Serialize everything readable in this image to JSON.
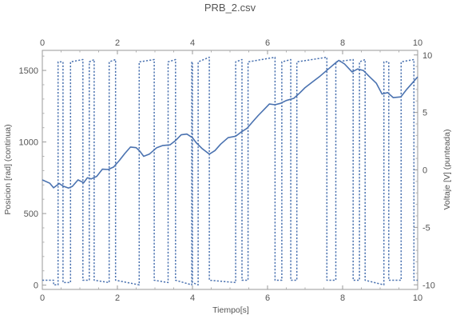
{
  "chart_data": {
    "type": "line",
    "title": "PRB_2.csv",
    "xlabel": "Tiempo[s]",
    "ylabel_left": "Posicion [rad] (continua)",
    "ylabel_right": "Voltaje [V] (punteada)",
    "xlim": [
      0,
      10
    ],
    "ylim_left": [
      -30,
      1640
    ],
    "ylim_right": [
      -10.4,
      10.4
    ],
    "x_ticks": [
      "0",
      "2",
      "4",
      "6",
      "8",
      "10"
    ],
    "x_tick_values": [
      0,
      2,
      4,
      6,
      8,
      10
    ],
    "y_left_ticks": [
      "0",
      "500",
      "1000",
      "1500"
    ],
    "y_left_tick_values": [
      0,
      500,
      1000,
      1500
    ],
    "y_right_ticks": [
      "-10",
      "-5",
      "0",
      "5",
      "10"
    ],
    "y_right_tick_values": [
      -10,
      -5,
      0,
      5,
      10
    ],
    "grid": false,
    "series": [
      {
        "style": "solid",
        "axis": "left",
        "color": "#4a72b0",
        "x": [
          0.0,
          0.2,
          0.3,
          0.45,
          0.55,
          0.7,
          0.8,
          0.95,
          1.1,
          1.2,
          1.3,
          1.45,
          1.6,
          1.75,
          1.9,
          2.05,
          2.2,
          2.35,
          2.5,
          2.6,
          2.7,
          2.85,
          3.05,
          3.2,
          3.4,
          3.55,
          3.7,
          3.85,
          4.0,
          4.1,
          4.25,
          4.45,
          4.6,
          4.75,
          4.95,
          5.15,
          5.3,
          5.45,
          5.6,
          5.75,
          5.9,
          6.05,
          6.2,
          6.35,
          6.5,
          6.7,
          6.85,
          7.0,
          7.2,
          7.4,
          7.6,
          7.8,
          7.9,
          8.05,
          8.25,
          8.4,
          8.55,
          8.7,
          8.9,
          9.05,
          9.2,
          9.35,
          9.55,
          9.7,
          9.85,
          10.0
        ],
        "y": [
          735,
          712,
          680,
          710,
          692,
          678,
          690,
          735,
          715,
          750,
          742,
          760,
          810,
          808,
          825,
          870,
          920,
          965,
          960,
          935,
          900,
          915,
          960,
          975,
          980,
          1010,
          1050,
          1055,
          1030,
          995,
          955,
          915,
          940,
          985,
          1030,
          1040,
          1070,
          1095,
          1140,
          1185,
          1225,
          1265,
          1260,
          1270,
          1290,
          1305,
          1340,
          1380,
          1420,
          1460,
          1505,
          1550,
          1570,
          1545,
          1490,
          1510,
          1500,
          1460,
          1410,
          1335,
          1345,
          1310,
          1315,
          1365,
          1410,
          1455
        ]
      },
      {
        "style": "dotted",
        "axis": "right",
        "color": "#4a72b0",
        "x": [
          0.0,
          0.3,
          0.3,
          0.42,
          0.42,
          0.55,
          0.55,
          0.75,
          0.75,
          1.08,
          1.08,
          1.25,
          1.25,
          1.38,
          1.38,
          1.78,
          1.78,
          1.95,
          1.95,
          2.58,
          2.58,
          2.98,
          2.98,
          3.35,
          3.35,
          3.55,
          3.55,
          3.98,
          3.98,
          4.0,
          4.0,
          4.15,
          4.15,
          4.45,
          4.45,
          5.15,
          5.15,
          5.32,
          5.32,
          5.48,
          5.48,
          6.2,
          6.2,
          6.38,
          6.38,
          6.62,
          6.62,
          6.78,
          6.78,
          7.58,
          7.58,
          7.82,
          7.82,
          8.28,
          8.28,
          8.45,
          8.45,
          8.6,
          8.6,
          9.1,
          9.1,
          9.23,
          9.23,
          9.56,
          9.56,
          9.9,
          9.9,
          10.0
        ],
        "y": [
          -9.6,
          -9.6,
          -10.0,
          -10.0,
          9.4,
          9.4,
          -9.8,
          -9.8,
          9.4,
          9.6,
          -9.6,
          -9.6,
          9.4,
          9.6,
          -9.6,
          -9.8,
          9.4,
          9.6,
          -9.6,
          -10.0,
          9.4,
          9.6,
          -9.6,
          -9.8,
          9.4,
          9.6,
          -9.6,
          -10.0,
          9.4,
          9.4,
          -9.8,
          -10.0,
          9.4,
          9.8,
          -9.6,
          -9.8,
          9.4,
          9.6,
          -9.6,
          -9.6,
          9.4,
          9.8,
          -9.6,
          -9.6,
          9.4,
          9.6,
          -9.6,
          -9.6,
          9.4,
          9.8,
          -9.6,
          -9.6,
          9.4,
          9.6,
          -9.6,
          -9.6,
          9.4,
          9.6,
          -9.6,
          -10.0,
          9.4,
          9.4,
          -9.6,
          -9.6,
          9.4,
          9.6,
          -9.6,
          -9.6
        ]
      }
    ]
  }
}
